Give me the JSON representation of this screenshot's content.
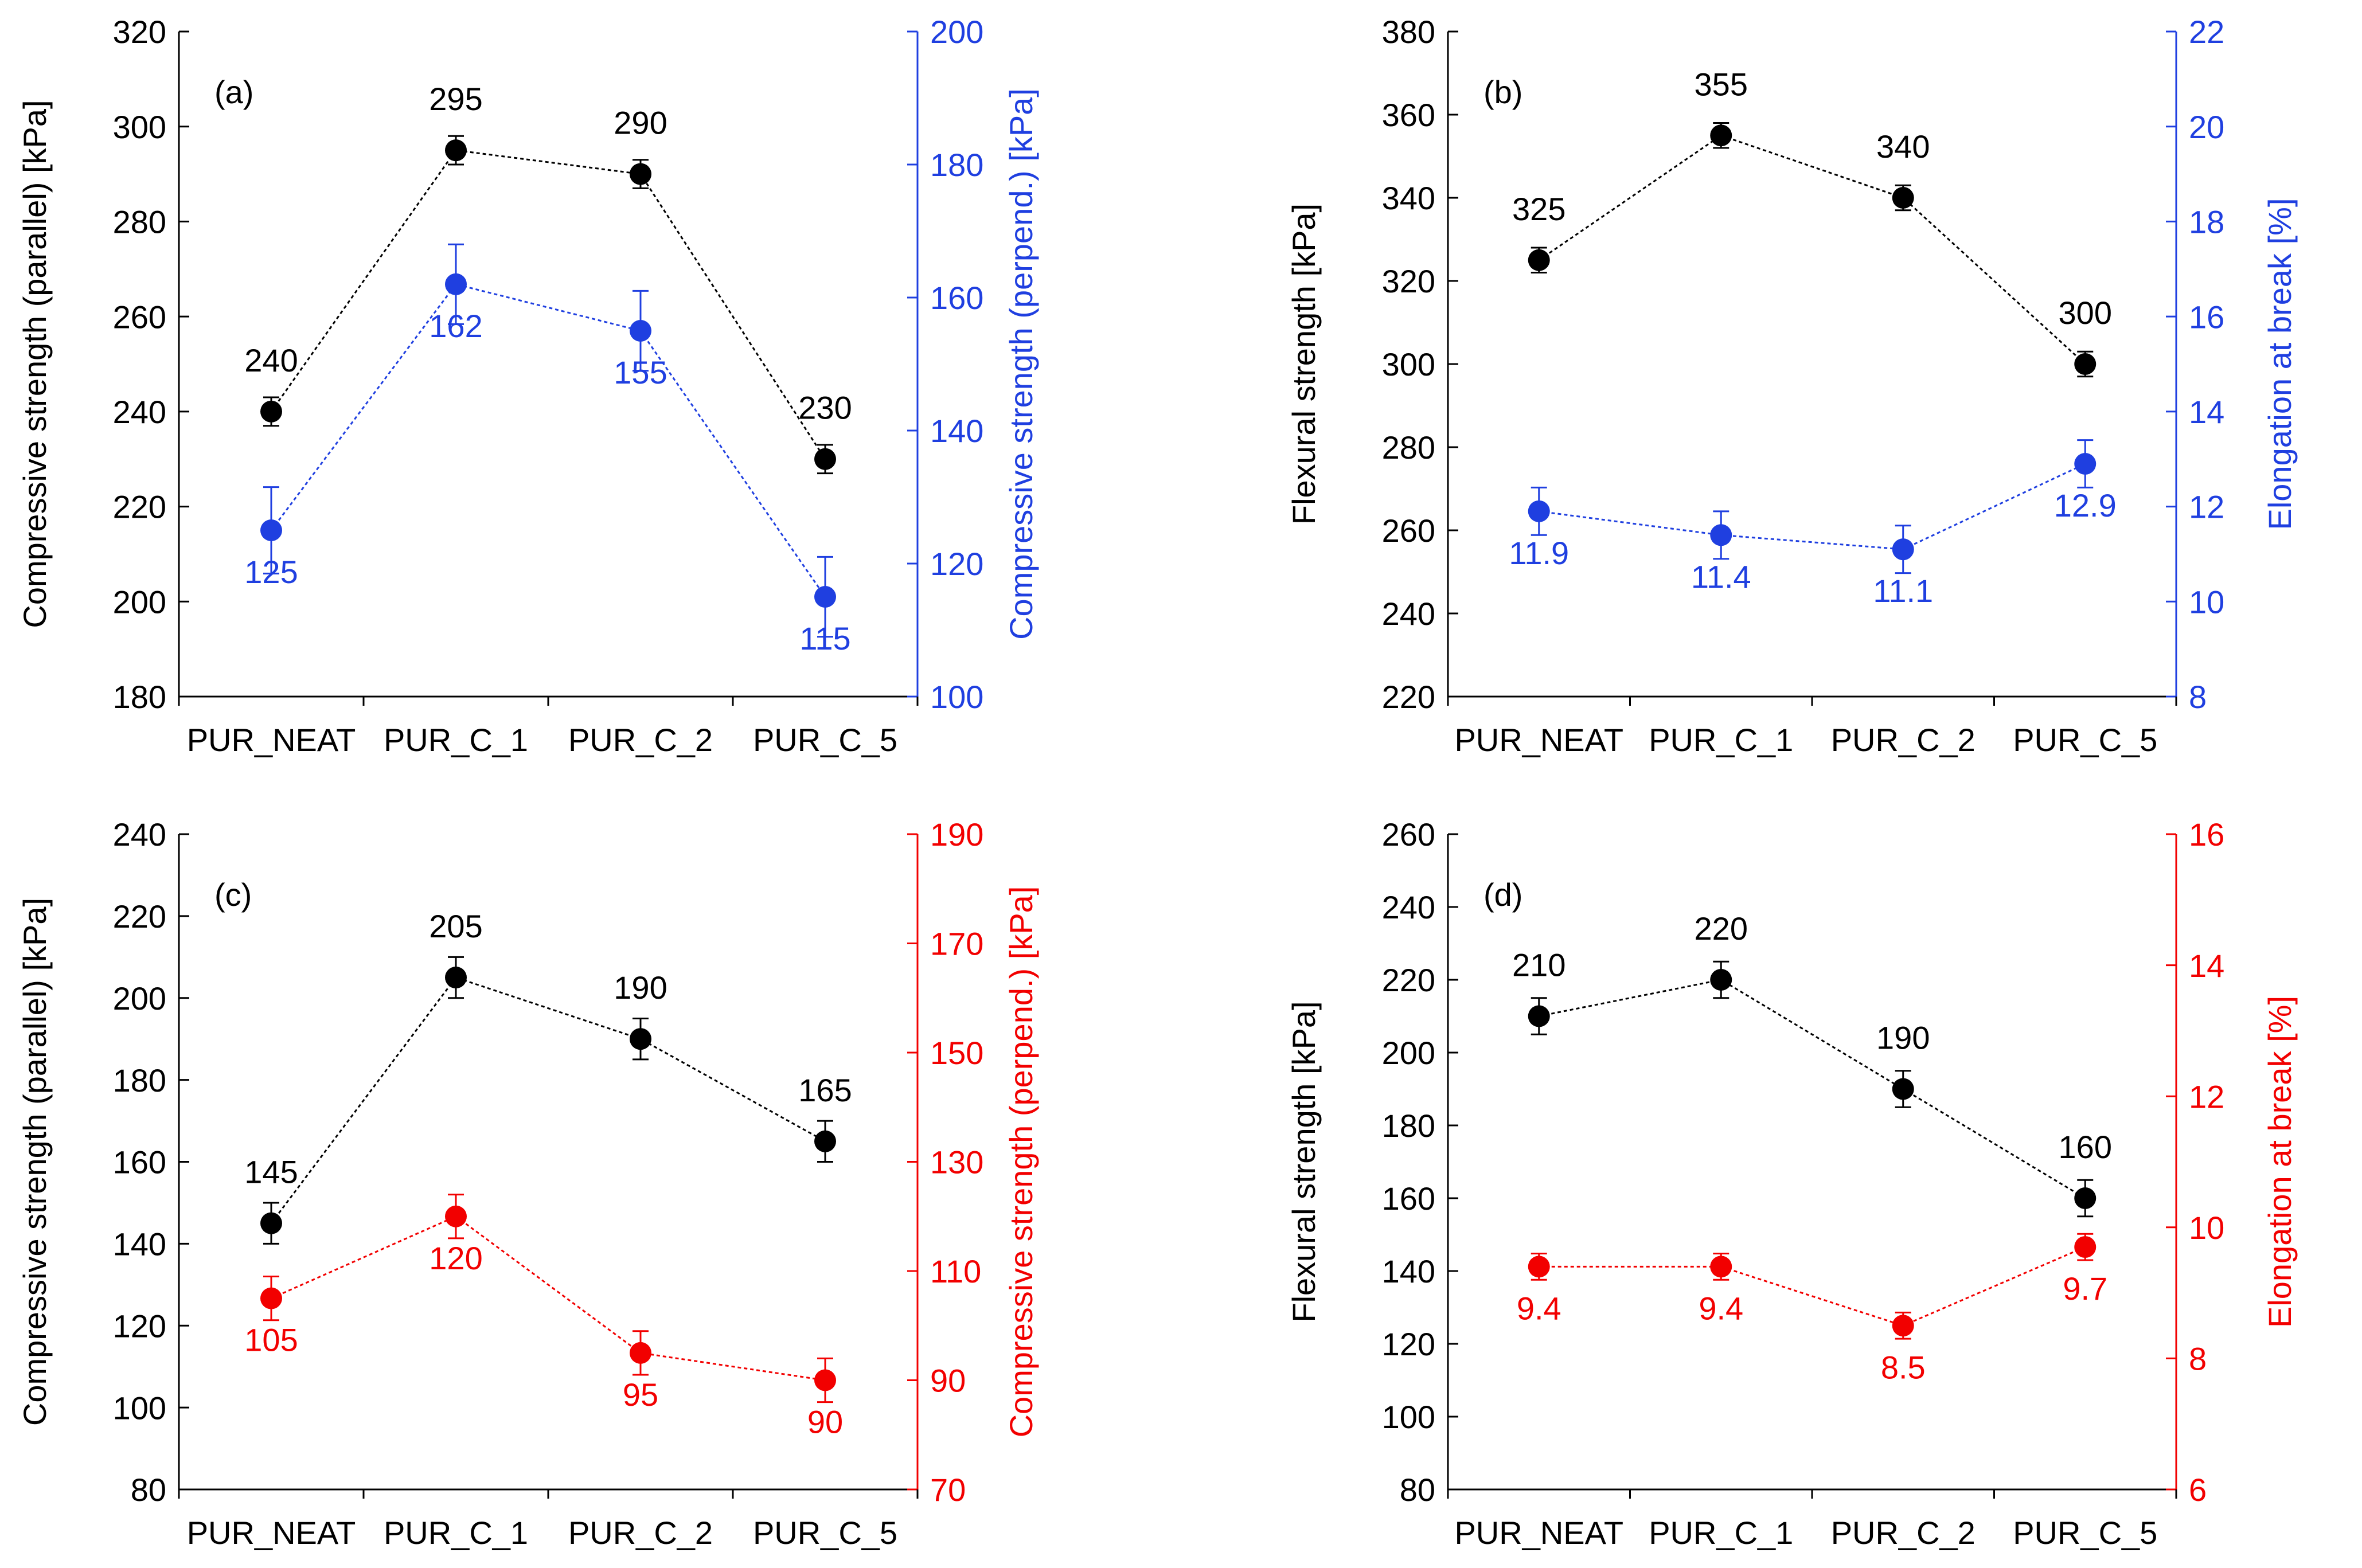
{
  "chart_data": [
    {
      "type": "line",
      "panel_label": "(a)",
      "categories": [
        "PUR_NEAT",
        "PUR_C_1",
        "PUR_C_2",
        "PUR_C_5"
      ],
      "ylabel": "Compressive strength (parallel) [kPa]",
      "ylim": [
        180,
        320
      ],
      "yticks": [
        180,
        200,
        220,
        240,
        260,
        280,
        300,
        320
      ],
      "y2label": "Compressive strength (perpend.) [kPa]",
      "y2lim": [
        100,
        200
      ],
      "y2ticks": [
        100,
        120,
        140,
        160,
        180,
        200
      ],
      "series": [
        {
          "name": "parallel",
          "axis": "left",
          "color": "#000000",
          "values": [
            240,
            295,
            290,
            230
          ],
          "errors": [
            3,
            3,
            3,
            3
          ],
          "labels": [
            "240",
            "295",
            "290",
            "230"
          ],
          "label_pos": [
            "above",
            "above",
            "above",
            "above"
          ]
        },
        {
          "name": "perpendicular",
          "axis": "right",
          "color": "#1f3fe0",
          "values": [
            125,
            162,
            155,
            115
          ],
          "errors": [
            6.5,
            6,
            6,
            6
          ],
          "labels": [
            "125",
            "162",
            "155",
            "115"
          ],
          "label_pos": [
            "below",
            "below",
            "below",
            "below"
          ]
        }
      ]
    },
    {
      "type": "line",
      "panel_label": "(b)",
      "categories": [
        "PUR_NEAT",
        "PUR_C_1",
        "PUR_C_2",
        "PUR_C_5"
      ],
      "ylabel": "Flexural strength [kPa]",
      "ylim": [
        220,
        380
      ],
      "yticks": [
        220,
        240,
        260,
        280,
        300,
        320,
        340,
        360,
        380
      ],
      "y2label": "Elongation at break [%]",
      "y2lim": [
        8,
        22
      ],
      "y2ticks": [
        8,
        10,
        12,
        14,
        16,
        18,
        20,
        22
      ],
      "series": [
        {
          "name": "flexural",
          "axis": "left",
          "color": "#000000",
          "values": [
            325,
            355,
            340,
            300
          ],
          "errors": [
            3,
            3,
            3,
            3
          ],
          "labels": [
            "325",
            "355",
            "340",
            "300"
          ],
          "label_pos": [
            "above",
            "above",
            "above",
            "above"
          ]
        },
        {
          "name": "elongation",
          "axis": "right",
          "color": "#1f3fe0",
          "values": [
            11.9,
            11.4,
            11.1,
            12.9
          ],
          "errors": [
            0.5,
            0.5,
            0.5,
            0.5
          ],
          "labels": [
            "11.9",
            "11.4",
            "11.1",
            "12.9"
          ],
          "label_pos": [
            "below",
            "below",
            "below",
            "below"
          ]
        }
      ]
    },
    {
      "type": "line",
      "panel_label": "(c)",
      "categories": [
        "PUR_NEAT",
        "PUR_C_1",
        "PUR_C_2",
        "PUR_C_5"
      ],
      "ylabel": "Compressive strength (parallel) [kPa]",
      "ylim": [
        80,
        240
      ],
      "yticks": [
        80,
        100,
        120,
        140,
        160,
        180,
        200,
        220,
        240
      ],
      "y2label": "Compressive strength (perpend.) [kPa]",
      "y2lim": [
        70,
        190
      ],
      "y2ticks": [
        70,
        90,
        110,
        130,
        150,
        170,
        190
      ],
      "series": [
        {
          "name": "parallel",
          "axis": "left",
          "color": "#000000",
          "values": [
            145,
            205,
            190,
            165
          ],
          "errors": [
            5,
            5,
            5,
            5
          ],
          "labels": [
            "145",
            "205",
            "190",
            "165"
          ],
          "label_pos": [
            "above",
            "above",
            "above",
            "above"
          ]
        },
        {
          "name": "perpendicular",
          "axis": "right",
          "color": "#f20000",
          "values": [
            105,
            120,
            95,
            90
          ],
          "errors": [
            4,
            4,
            4,
            4
          ],
          "labels": [
            "105",
            "120",
            "95",
            "90"
          ],
          "label_pos": [
            "below",
            "below",
            "below",
            "below"
          ]
        }
      ]
    },
    {
      "type": "line",
      "panel_label": "(d)",
      "categories": [
        "PUR_NEAT",
        "PUR_C_1",
        "PUR_C_2",
        "PUR_C_5"
      ],
      "ylabel": "Flexural strength [kPa]",
      "ylim": [
        80,
        260
      ],
      "yticks": [
        80,
        100,
        120,
        140,
        160,
        180,
        200,
        220,
        240,
        260
      ],
      "y2label": "Elongation at break [%]",
      "y2lim": [
        6,
        16
      ],
      "y2ticks": [
        6,
        8,
        10,
        12,
        14,
        16
      ],
      "series": [
        {
          "name": "flexural",
          "axis": "left",
          "color": "#000000",
          "values": [
            210,
            220,
            190,
            160
          ],
          "errors": [
            5,
            5,
            5,
            5
          ],
          "labels": [
            "210",
            "220",
            "190",
            "160"
          ],
          "label_pos": [
            "above",
            "above",
            "above",
            "above"
          ]
        },
        {
          "name": "elongation",
          "axis": "right",
          "color": "#f20000",
          "values": [
            9.4,
            9.4,
            8.5,
            9.7
          ],
          "errors": [
            0.2,
            0.2,
            0.2,
            0.2
          ],
          "labels": [
            "9.4",
            "9.4",
            "8.5",
            "9.7"
          ],
          "label_pos": [
            "below",
            "below",
            "below",
            "below"
          ]
        }
      ]
    }
  ]
}
